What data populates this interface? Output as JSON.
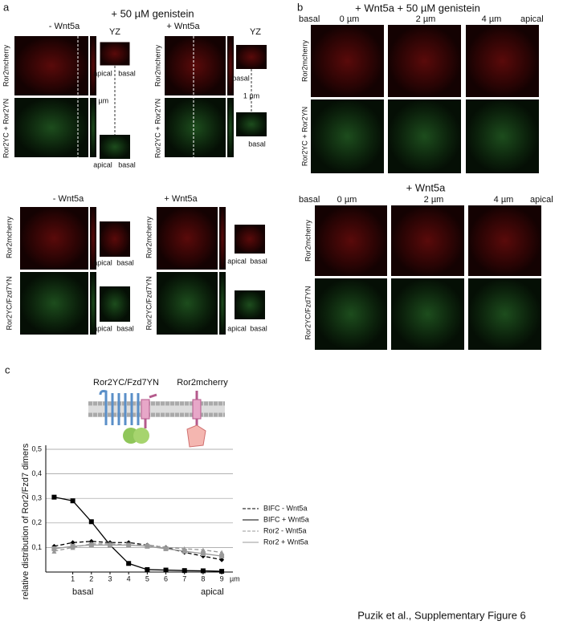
{
  "panel_a": {
    "label": "a",
    "title": "+ 50 µM genistein",
    "yz": "YZ",
    "minus": "- Wnt5a",
    "plus": "+ Wnt5a",
    "rows_top": [
      "Ror2mcherry",
      "Ror2YC + Ror2YN"
    ],
    "rows_bottom": [
      "Ror2mcherry",
      "Ror2YC/Fzd7YN"
    ],
    "depth_left": "3 µm",
    "depth_right": "1 µm",
    "apical": "apical",
    "basal": "basal"
  },
  "panel_b": {
    "label": "b",
    "title_top": "+ Wnt5a + 50 µM genistein",
    "title_bottom": "+ Wnt5a",
    "basal": "basal",
    "apical": "apical",
    "depths": [
      "0 µm",
      "2 µm",
      "4 µm"
    ],
    "rows_top": [
      "Ror2mcherry",
      "Ror2YC + Ror2YN"
    ],
    "rows_bottom": [
      "Ror2mcherry",
      "Ror2YC/Fzd7YN"
    ]
  },
  "panel_c": {
    "label": "c",
    "diagram_labels": [
      "Ror2YC/Fzd7YN",
      "Ror2mcherry"
    ],
    "basal": "basal",
    "apical": "apical",
    "x_unit": "µm"
  },
  "chart_data": {
    "type": "line",
    "y_label": "relative distribution of Ror2/Fzd7 dimers",
    "x": [
      0,
      1,
      2,
      3,
      4,
      5,
      6,
      7,
      8,
      9
    ],
    "xlim": [
      -0.45,
      9.6
    ],
    "xticks": [
      1,
      2,
      3,
      4,
      5,
      6,
      7,
      8,
      9
    ],
    "ylim": [
      0,
      0.5
    ],
    "yticks": [
      {
        "value": 0.1,
        "label": "0,1"
      },
      {
        "value": 0.2,
        "label": "0,2"
      },
      {
        "value": 0.3,
        "label": "0,3"
      },
      {
        "value": 0.4,
        "label": "0,4"
      },
      {
        "value": 0.5,
        "label": "0,5"
      }
    ],
    "grid": true,
    "series": [
      {
        "name": "BIFC - Wnt5a",
        "color": "#000000",
        "line_style": "dashed",
        "marker": "diamond",
        "values": [
          0.105,
          0.12,
          0.125,
          0.12,
          0.12,
          0.11,
          0.1,
          0.08,
          0.065,
          0.05
        ]
      },
      {
        "name": "BIFC + Wnt5a",
        "color": "#000000",
        "line_style": "solid",
        "marker": "square",
        "values": [
          0.305,
          0.29,
          0.205,
          0.11,
          0.035,
          0.01,
          0.008,
          0.006,
          0.005,
          0.003
        ]
      },
      {
        "name": "Ror2 - Wnt5a",
        "color": "#999999",
        "line_style": "dashed",
        "marker": "triangle",
        "values": [
          0.085,
          0.1,
          0.115,
          0.115,
          0.11,
          0.11,
          0.1,
          0.095,
          0.09,
          0.08
        ]
      },
      {
        "name": "Ror2 + Wnt5a",
        "color": "#999999",
        "line_style": "solid",
        "marker": "square",
        "values": [
          0.095,
          0.105,
          0.11,
          0.11,
          0.11,
          0.105,
          0.095,
          0.085,
          0.075,
          0.065
        ]
      }
    ]
  },
  "footer": "Puzik et al., Supplementary Figure 6"
}
